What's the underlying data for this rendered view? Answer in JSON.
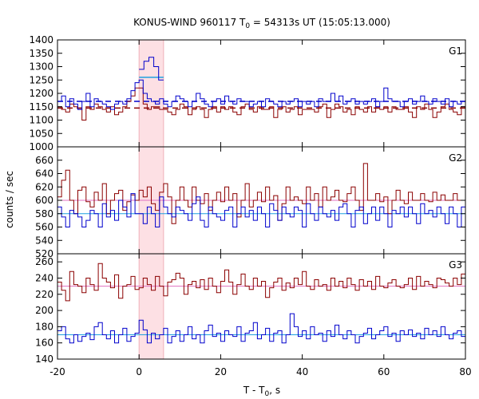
{
  "chart_data": {
    "type": "line",
    "title_main": "KONUS-WIND 960117 T",
    "title_sub": "0",
    "title_rest": " = 54313s UT (15:05:13.000)",
    "xlabel_main": "T - T",
    "xlabel_sub": "0",
    "xlabel_rest": ", s",
    "ylabel": "counts / sec",
    "xlim": [
      -20,
      80
    ],
    "x_ticks": [
      "-20",
      "0",
      "20",
      "40",
      "60",
      "80"
    ],
    "highlight_interval": [
      0,
      6
    ],
    "colors": {
      "red_series": "#8b0000",
      "blue_series": "#0000cc",
      "cyan_level": "#1ea0e0",
      "pink_level": "#e070c0",
      "highlight": "#fde0e4"
    },
    "panels": [
      {
        "label": "G1",
        "ylim": [
          1000,
          1400
        ],
        "y_ticks": [
          1000,
          1050,
          1100,
          1150,
          1200,
          1250,
          1300,
          1350,
          1400
        ],
        "red_level": 1145,
        "blue_level": 1170,
        "peak_level": 1260,
        "red_values": [
          1150,
          1140,
          1130,
          1160,
          1150,
          1140,
          1100,
          1150,
          1140,
          1160,
          1150,
          1140,
          1130,
          1150,
          1120,
          1130,
          1150,
          1170,
          1190,
          1220,
          1220,
          1160,
          1140,
          1150,
          1150,
          1140,
          1140,
          1130,
          1120,
          1140,
          1160,
          1150,
          1120,
          1140,
          1150,
          1140,
          1110,
          1140,
          1150,
          1130,
          1150,
          1140,
          1150,
          1130,
          1120,
          1150,
          1160,
          1140,
          1130,
          1150,
          1140,
          1140,
          1150,
          1110,
          1140,
          1150,
          1130,
          1140,
          1150,
          1120,
          1140,
          1140,
          1140,
          1130,
          1150,
          1160,
          1110,
          1140,
          1160,
          1150,
          1130,
          1140,
          1120,
          1150,
          1140,
          1130,
          1150,
          1130,
          1150,
          1140,
          1150,
          1130,
          1150,
          1140,
          1140,
          1150,
          1130,
          1110,
          1150,
          1140,
          1160,
          1140,
          1110,
          1130,
          1150,
          1160,
          1140,
          1130,
          1120,
          1150
        ],
        "blue_values": [
          1170,
          1190,
          1150,
          1180,
          1160,
          1140,
          1170,
          1200,
          1150,
          1180,
          1170,
          1160,
          1150,
          1140,
          1160,
          1170,
          1160,
          1180,
          1210,
          1240,
          1250,
          1200,
          1180,
          1170,
          1160,
          1180,
          1160,
          1150,
          1170,
          1190,
          1180,
          1170,
          1150,
          1170,
          1200,
          1180,
          1160,
          1150,
          1170,
          1180,
          1160,
          1190,
          1170,
          1160,
          1180,
          1170,
          1170,
          1150,
          1160,
          1170,
          1150,
          1180,
          1170,
          1160,
          1150,
          1170,
          1160,
          1170,
          1180,
          1150,
          1170,
          1160,
          1170,
          1150,
          1180,
          1170,
          1170,
          1200,
          1170,
          1190,
          1160,
          1170,
          1180,
          1160,
          1170,
          1160,
          1170,
          1180,
          1150,
          1170,
          1220,
          1180,
          1170,
          1170,
          1150,
          1170,
          1180,
          1160,
          1170,
          1190,
          1170,
          1160,
          1180,
          1170,
          1160,
          1180,
          1150,
          1170,
          1160,
          1170
        ],
        "spike_values": [
          1290,
          1320,
          1335,
          1300,
          1250
        ]
      },
      {
        "label": "G2",
        "ylim": [
          520,
          680
        ],
        "y_ticks": [
          520,
          540,
          560,
          580,
          600,
          620,
          640,
          660
        ],
        "red_level": 600,
        "blue_level": 580,
        "red_values": [
          605,
          630,
          645,
          600,
          580,
          615,
          620,
          598,
          590,
          612,
          600,
          625,
          580,
          600,
          610,
          615,
          585,
          598,
          608,
          600,
          615,
          605,
          620,
          595,
          585,
          612,
          625,
          605,
          565,
          600,
          620,
          600,
          590,
          620,
          600,
          595,
          610,
          585,
          600,
          612,
          598,
          620,
          600,
          610,
          575,
          600,
          625,
          590,
          600,
          612,
          598,
          620,
          600,
          607,
          570,
          595,
          620,
          600,
          605,
          600,
          595,
          620,
          600,
          610,
          590,
          620,
          600,
          605,
          615,
          600,
          598,
          610,
          620,
          600,
          585,
          655,
          600,
          600,
          610,
          598,
          605,
          580,
          600,
          615,
          600,
          595,
          612,
          600,
          600,
          610,
          600,
          598,
          612,
          600,
          608,
          600,
          600,
          610,
          600,
          600
        ],
        "blue_values": [
          590,
          575,
          560,
          585,
          580,
          575,
          560,
          570,
          585,
          580,
          560,
          595,
          575,
          585,
          570,
          600,
          590,
          575,
          610,
          580,
          580,
          565,
          590,
          580,
          560,
          605,
          590,
          580,
          575,
          590,
          585,
          580,
          570,
          595,
          605,
          570,
          560,
          590,
          580,
          575,
          570,
          585,
          590,
          560,
          580,
          590,
          575,
          585,
          570,
          590,
          580,
          560,
          595,
          585,
          570,
          590,
          580,
          575,
          590,
          585,
          560,
          595,
          580,
          570,
          590,
          580,
          575,
          585,
          570,
          590,
          595,
          580,
          560,
          585,
          590,
          565,
          580,
          590,
          570,
          590,
          580,
          560,
          585,
          580,
          590,
          575,
          590,
          580,
          565,
          595,
          580,
          585,
          575,
          590,
          580,
          565,
          590,
          580,
          560,
          590
        ]
      },
      {
        "label": "G3",
        "ylim": [
          140,
          270
        ],
        "y_ticks": [
          140,
          160,
          180,
          200,
          220,
          240,
          260
        ],
        "red_level": 230,
        "blue_level": 170,
        "red_values": [
          235,
          225,
          212,
          248,
          232,
          230,
          222,
          240,
          232,
          225,
          258,
          240,
          235,
          228,
          244,
          215,
          230,
          232,
          242,
          226,
          228,
          240,
          232,
          225,
          242,
          230,
          218,
          235,
          238,
          246,
          240,
          220,
          232,
          236,
          228,
          238,
          226,
          240,
          230,
          222,
          236,
          250,
          235,
          220,
          232,
          245,
          230,
          226,
          240,
          230,
          236,
          216,
          228,
          235,
          240,
          225,
          234,
          228,
          240,
          232,
          248,
          230,
          226,
          238,
          230,
          232,
          225,
          240,
          230,
          236,
          228,
          240,
          232,
          225,
          238,
          230,
          236,
          226,
          242,
          230,
          228,
          234,
          238,
          230,
          228,
          232,
          240,
          226,
          242,
          230,
          236,
          232,
          228,
          240,
          238,
          234,
          230,
          240,
          232,
          245
        ],
        "blue_values": [
          175,
          180,
          165,
          160,
          170,
          162,
          168,
          172,
          164,
          180,
          185,
          170,
          165,
          175,
          160,
          170,
          178,
          162,
          168,
          172,
          188,
          176,
          160,
          172,
          165,
          170,
          178,
          160,
          168,
          175,
          162,
          170,
          180,
          165,
          170,
          160,
          175,
          182,
          168,
          172,
          162,
          175,
          170,
          168,
          180,
          162,
          172,
          175,
          185,
          165,
          170,
          178,
          162,
          172,
          175,
          160,
          170,
          196,
          180,
          168,
          175,
          165,
          180,
          170,
          172,
          162,
          175,
          168,
          182,
          170,
          165,
          175,
          170,
          160,
          168,
          172,
          178,
          165,
          170,
          175,
          180,
          168,
          172,
          162,
          175,
          170,
          176,
          168,
          172,
          165,
          178,
          170,
          175,
          168,
          180,
          170,
          165,
          172,
          175,
          168
        ]
      }
    ]
  }
}
